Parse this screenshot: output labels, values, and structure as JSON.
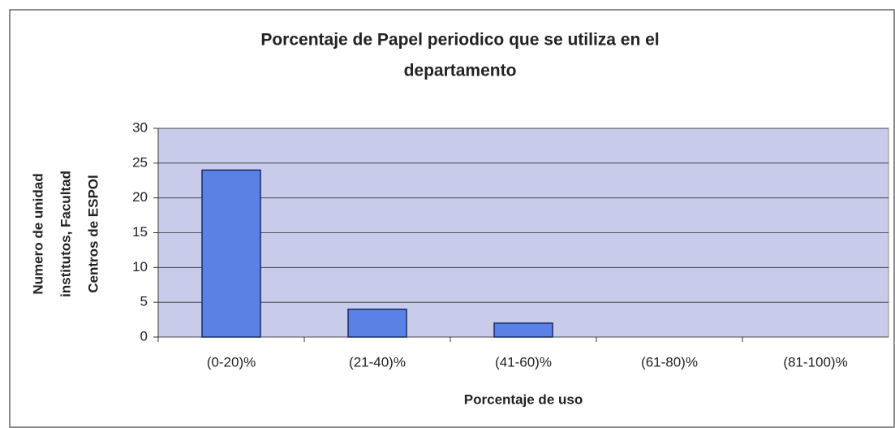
{
  "chart_data": {
    "type": "bar",
    "title": [
      "Porcentaje de Papel periodico que se utiliza en el",
      "departamento"
    ],
    "x_label": "Porcentaje de uso",
    "y_label": [
      "Numero de unidad",
      "institutos, Facultad",
      "Centros de ESPOl"
    ],
    "categories": [
      "(0-20)%",
      "(21-40)%",
      "(41-60)%",
      "(61-80)%",
      "(81-100)%"
    ],
    "values": [
      24,
      4,
      2,
      0,
      0
    ],
    "color": "#5b80e6",
    "ylim": [
      0,
      30
    ],
    "yticks": [
      0,
      5,
      10,
      15,
      20,
      25,
      30
    ],
    "grid": true
  }
}
